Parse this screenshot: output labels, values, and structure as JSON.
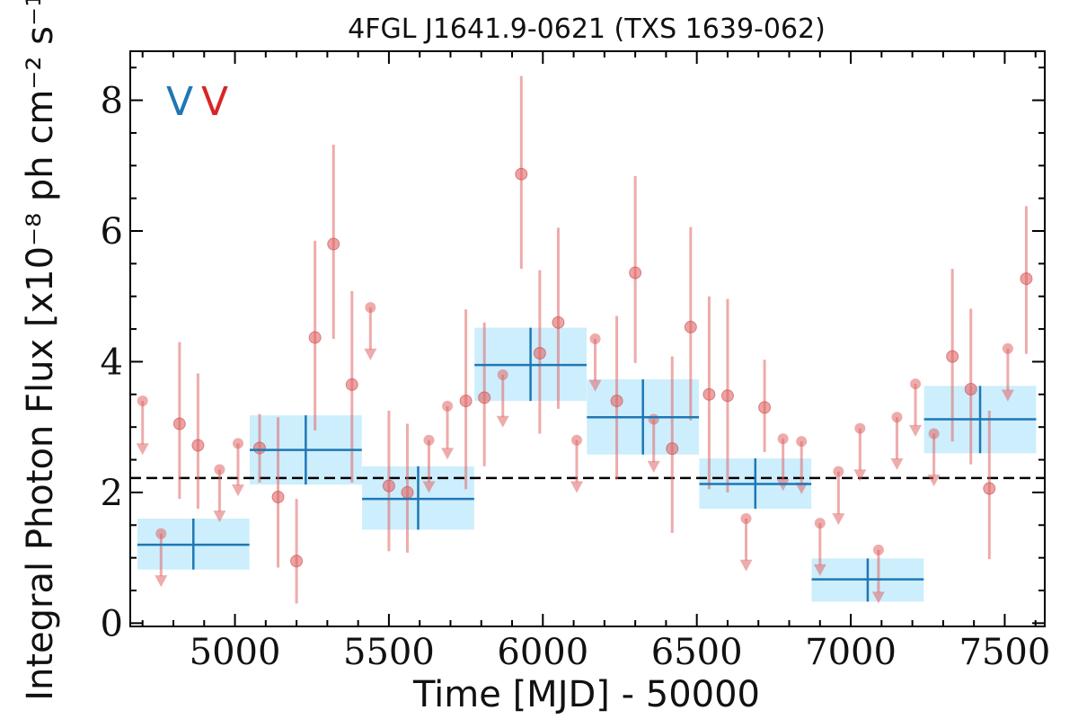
{
  "chart_data": {
    "type": "scatter",
    "title": "4FGL J1641.9-0621 (TXS 1639-062)",
    "xlabel": "Time [MJD] - 50000",
    "ylabel": "Integral Photon Flux [x10⁻⁸ ph cm⁻² s⁻¹]",
    "xlim": [
      4660,
      7630
    ],
    "ylim": [
      -0.05,
      8.75
    ],
    "xticks": [
      5000,
      5500,
      6000,
      6500,
      7000,
      7500
    ],
    "yticks": [
      0,
      2,
      4,
      6,
      8
    ],
    "grid": false,
    "legend_markers": [
      {
        "text": "V",
        "color": "#1f77b4"
      },
      {
        "text": "V",
        "color": "#d62728"
      }
    ],
    "mean_flux": 2.22,
    "long_bins": {
      "name": "",
      "color": "#1f77b4",
      "fill": "#cdeefc",
      "points": [
        {
          "x": 4865,
          "xerr": 182,
          "y": 1.2,
          "ylo": 0.82,
          "yhi": 1.6
        },
        {
          "x": 5230,
          "xerr": 182,
          "y": 2.65,
          "ylo": 2.12,
          "yhi": 3.18
        },
        {
          "x": 5595,
          "xerr": 182,
          "y": 1.9,
          "ylo": 1.43,
          "yhi": 2.4
        },
        {
          "x": 5960,
          "xerr": 182,
          "y": 3.95,
          "ylo": 3.4,
          "yhi": 4.52
        },
        {
          "x": 6325,
          "xerr": 182,
          "y": 3.15,
          "ylo": 2.58,
          "yhi": 3.73
        },
        {
          "x": 6690,
          "xerr": 182,
          "y": 2.13,
          "ylo": 1.75,
          "yhi": 2.52
        },
        {
          "x": 7055,
          "xerr": 182,
          "y": 0.67,
          "ylo": 0.33,
          "yhi": 0.99
        },
        {
          "x": 7420,
          "xerr": 182,
          "y": 3.12,
          "ylo": 2.6,
          "yhi": 3.63
        }
      ]
    },
    "short_bins": {
      "name": "",
      "color": "#e06666",
      "detections": [
        {
          "x": 4820,
          "y": 3.05,
          "ylo": 1.9,
          "yhi": 4.3
        },
        {
          "x": 4880,
          "y": 2.72,
          "ylo": 1.75,
          "yhi": 3.82
        },
        {
          "x": 5080,
          "y": 2.68,
          "ylo": 2.15,
          "yhi": 3.2
        },
        {
          "x": 5140,
          "y": 1.93,
          "ylo": 0.85,
          "yhi": 3.15
        },
        {
          "x": 5200,
          "y": 0.95,
          "ylo": 0.3,
          "yhi": 1.9
        },
        {
          "x": 5260,
          "y": 4.37,
          "ylo": 2.95,
          "yhi": 5.85
        },
        {
          "x": 5320,
          "y": 5.8,
          "ylo": 4.35,
          "yhi": 7.32
        },
        {
          "x": 5380,
          "y": 3.65,
          "ylo": 2.15,
          "yhi": 5.08
        },
        {
          "x": 5500,
          "y": 2.1,
          "ylo": 1.1,
          "yhi": 3.25
        },
        {
          "x": 5560,
          "y": 2.0,
          "ylo": 1.08,
          "yhi": 3.05
        },
        {
          "x": 5750,
          "y": 3.4,
          "ylo": 2.05,
          "yhi": 4.8
        },
        {
          "x": 5810,
          "y": 3.45,
          "ylo": 2.4,
          "yhi": 4.6
        },
        {
          "x": 5930,
          "y": 6.87,
          "ylo": 5.42,
          "yhi": 8.37
        },
        {
          "x": 5990,
          "y": 4.13,
          "ylo": 2.9,
          "yhi": 5.4
        },
        {
          "x": 6050,
          "y": 4.6,
          "ylo": 3.28,
          "yhi": 6.05
        },
        {
          "x": 6240,
          "y": 3.4,
          "ylo": 2.2,
          "yhi": 4.7
        },
        {
          "x": 6300,
          "y": 5.36,
          "ylo": 3.98,
          "yhi": 6.84
        },
        {
          "x": 6420,
          "y": 2.67,
          "ylo": 1.38,
          "yhi": 4.08
        },
        {
          "x": 6480,
          "y": 4.53,
          "ylo": 3.1,
          "yhi": 6.06
        },
        {
          "x": 6540,
          "y": 3.5,
          "ylo": 2.05,
          "yhi": 5.0
        },
        {
          "x": 6600,
          "y": 3.48,
          "ylo": 2.0,
          "yhi": 4.96
        },
        {
          "x": 6720,
          "y": 3.3,
          "ylo": 2.62,
          "yhi": 4.03
        },
        {
          "x": 7330,
          "y": 4.08,
          "ylo": 2.78,
          "yhi": 5.42
        },
        {
          "x": 7390,
          "y": 3.58,
          "ylo": 2.43,
          "yhi": 4.81
        },
        {
          "x": 7450,
          "y": 2.06,
          "ylo": 0.98,
          "yhi": 3.25
        },
        {
          "x": 7570,
          "y": 5.27,
          "ylo": 4.12,
          "yhi": 6.38
        }
      ],
      "upper_limits": [
        {
          "x": 4700,
          "y": 3.4,
          "low": 2.6
        },
        {
          "x": 4760,
          "y": 1.37,
          "low": 0.58
        },
        {
          "x": 4950,
          "y": 2.35,
          "low": 1.57
        },
        {
          "x": 5010,
          "y": 2.75,
          "low": 1.97
        },
        {
          "x": 5440,
          "y": 4.83,
          "low": 4.05
        },
        {
          "x": 5630,
          "y": 2.8,
          "low": 2.02
        },
        {
          "x": 5690,
          "y": 3.32,
          "low": 2.53
        },
        {
          "x": 5870,
          "y": 3.8,
          "low": 3.02
        },
        {
          "x": 6110,
          "y": 2.8,
          "low": 2.02
        },
        {
          "x": 6170,
          "y": 4.35,
          "low": 3.57
        },
        {
          "x": 6360,
          "y": 3.12,
          "low": 2.33
        },
        {
          "x": 6660,
          "y": 1.6,
          "low": 0.82
        },
        {
          "x": 6780,
          "y": 2.82,
          "low": 2.05
        },
        {
          "x": 6840,
          "y": 2.78,
          "low": 2.0
        },
        {
          "x": 6900,
          "y": 1.53,
          "low": 0.75
        },
        {
          "x": 6960,
          "y": 2.32,
          "low": 1.53
        },
        {
          "x": 7030,
          "y": 2.98,
          "low": 2.2
        },
        {
          "x": 7090,
          "y": 1.12,
          "low": 0.33
        },
        {
          "x": 7150,
          "y": 3.15,
          "low": 2.37
        },
        {
          "x": 7210,
          "y": 3.66,
          "low": 2.88
        },
        {
          "x": 7270,
          "y": 2.9,
          "low": 2.12
        },
        {
          "x": 7510,
          "y": 4.2,
          "low": 3.42
        }
      ]
    }
  }
}
